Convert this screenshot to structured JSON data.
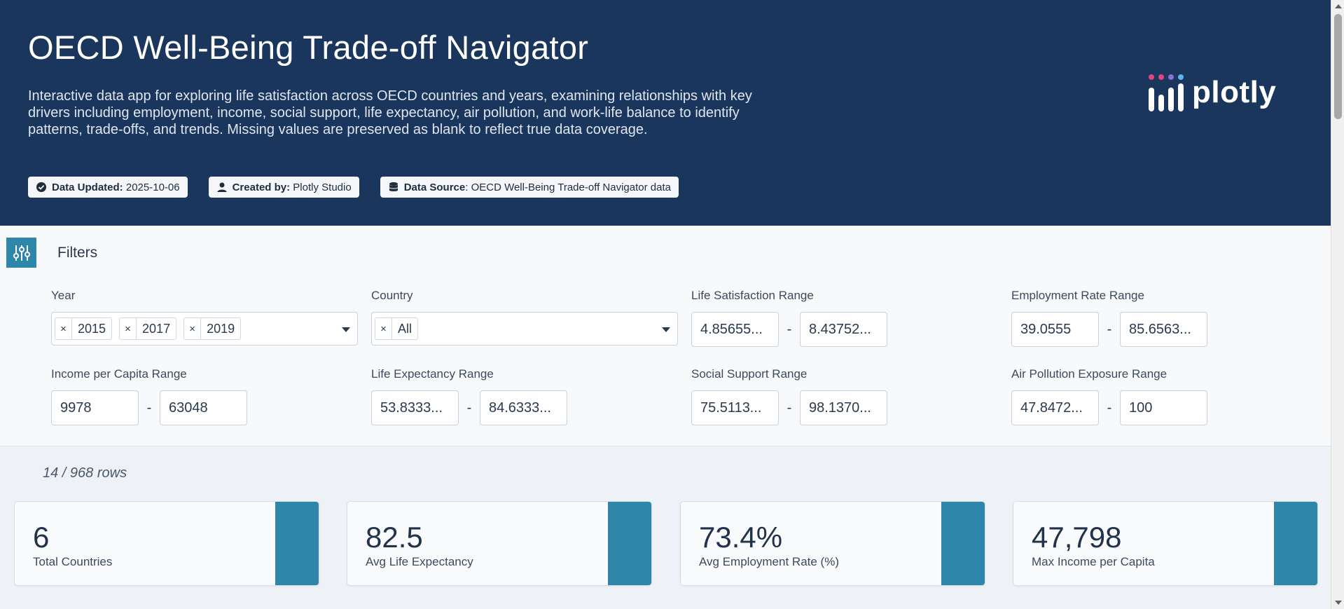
{
  "header": {
    "title": "OECD Well-Being Trade-off Navigator",
    "description": "Interactive data app for exploring life satisfaction across OECD countries and years, examining relationships with key drivers including employment, income, social support, life expectancy, air pollution, and work-life balance to identify patterns, trade-offs, and trends. Missing values are preserved as blank to reflect true data coverage.",
    "badges": [
      {
        "label": "Data Updated:",
        "value": "2025-10-06",
        "icon": "check-circle-icon"
      },
      {
        "label": "Created by:",
        "value": "Plotly Studio",
        "icon": "user-icon"
      },
      {
        "label": "Data Source",
        "value": ": OECD Well-Being Trade-off Navigator data",
        "icon": "database-icon"
      }
    ],
    "logo_text": "plotly"
  },
  "filters": {
    "title": "Filters",
    "year": {
      "label": "Year",
      "selected": [
        "2015",
        "2017",
        "2019"
      ]
    },
    "country": {
      "label": "Country",
      "selected": [
        "All"
      ]
    },
    "life_satisfaction": {
      "label": "Life Satisfaction Range",
      "min": "4.85655...",
      "max": "8.43752..."
    },
    "employment_rate": {
      "label": "Employment Rate Range",
      "min": "39.0555",
      "max": "85.6563..."
    },
    "income": {
      "label": "Income per Capita Range",
      "min": "9978",
      "max": "63048"
    },
    "life_expectancy": {
      "label": "Life Expectancy Range",
      "min": "53.8333...",
      "max": "84.6333..."
    },
    "social_support": {
      "label": "Social Support Range",
      "min": "75.5113...",
      "max": "98.1370..."
    },
    "air_pollution": {
      "label": "Air Pollution Exposure Range",
      "min": "47.8472...",
      "max": "100"
    },
    "separator": "-"
  },
  "row_count": "14 / 968 rows",
  "kpis": [
    {
      "value": "6",
      "label": "Total Countries"
    },
    {
      "value": "82.5",
      "label": "Avg Life Expectancy"
    },
    {
      "value": "73.4%",
      "label": "Avg Employment Rate (%)"
    },
    {
      "value": "47,798",
      "label": "Max Income per Capita"
    }
  ],
  "colors": {
    "header_bg": "#1b365d",
    "accent": "#2e86ab",
    "logo_dots": [
      "#e0457b",
      "#e0457b",
      "#8a6fd6",
      "#5ab8e8"
    ]
  }
}
